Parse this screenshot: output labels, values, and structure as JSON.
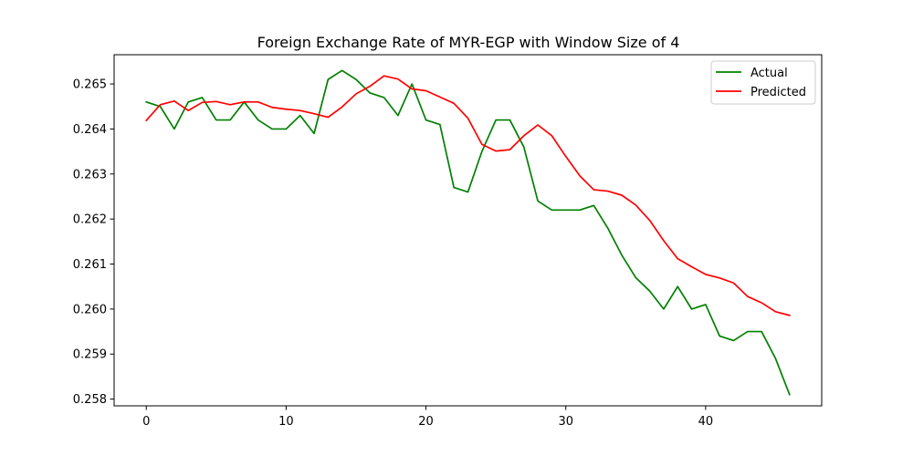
{
  "chart_data": {
    "type": "line",
    "title": "Foreign Exchange Rate of MYR-EGP with Window Size of 4",
    "xlabel": "",
    "ylabel": "",
    "xlim": [
      -2.3,
      48.3
    ],
    "ylim": [
      0.25785,
      0.26565
    ],
    "x_ticks": [
      0,
      10,
      20,
      30,
      40
    ],
    "y_ticks": [
      0.258,
      0.259,
      0.26,
      0.261,
      0.262,
      0.263,
      0.264,
      0.265
    ],
    "x_tick_labels": [
      "0",
      "10",
      "20",
      "30",
      "40"
    ],
    "y_tick_labels": [
      "0.258",
      "0.259",
      "0.260",
      "0.261",
      "0.262",
      "0.263",
      "0.264",
      "0.265"
    ],
    "grid": false,
    "legend_position": "upper right",
    "x": [
      0,
      1,
      2,
      3,
      4,
      5,
      6,
      7,
      8,
      9,
      10,
      11,
      12,
      13,
      14,
      15,
      16,
      17,
      18,
      19,
      20,
      21,
      22,
      23,
      24,
      25,
      26,
      27,
      28,
      29,
      30,
      31,
      32,
      33,
      34,
      35,
      36,
      37,
      38,
      39,
      40,
      41,
      42,
      43,
      44,
      45,
      46
    ],
    "series": [
      {
        "name": "Actual",
        "color": "#008000",
        "values": [
          0.2646,
          0.2645,
          0.264,
          0.2646,
          0.2647,
          0.2642,
          0.2642,
          0.2646,
          0.2642,
          0.264,
          0.264,
          0.2643,
          0.2639,
          0.2651,
          0.2653,
          0.2651,
          0.2648,
          0.2647,
          0.2643,
          0.265,
          0.2642,
          0.2641,
          0.2627,
          0.2626,
          0.2635,
          0.2642,
          0.2642,
          0.2636,
          0.2624,
          0.2622,
          0.2622,
          0.2622,
          0.2623,
          0.2618,
          0.2612,
          0.2607,
          0.2604,
          0.26,
          0.2605,
          0.26,
          0.2601,
          0.2594,
          0.2593,
          0.2595,
          0.2595,
          0.2589,
          0.2581
        ]
      },
      {
        "name": "Predicted",
        "color": "#ff0000",
        "values": [
          0.26419,
          0.26454,
          0.26462,
          0.26441,
          0.26459,
          0.26461,
          0.26454,
          0.2646,
          0.2646,
          0.26448,
          0.26444,
          0.26441,
          0.26434,
          0.26426,
          0.26449,
          0.26478,
          0.26495,
          0.26518,
          0.26511,
          0.26489,
          0.26485,
          0.26471,
          0.26457,
          0.26424,
          0.26366,
          0.26351,
          0.26354,
          0.26385,
          0.26409,
          0.26385,
          0.26339,
          0.26296,
          0.26265,
          0.26262,
          0.26253,
          0.26231,
          0.26197,
          0.26152,
          0.26112,
          0.26094,
          0.26077,
          0.26069,
          0.26058,
          0.26028,
          0.26014,
          0.25994,
          0.25986
        ]
      }
    ]
  }
}
